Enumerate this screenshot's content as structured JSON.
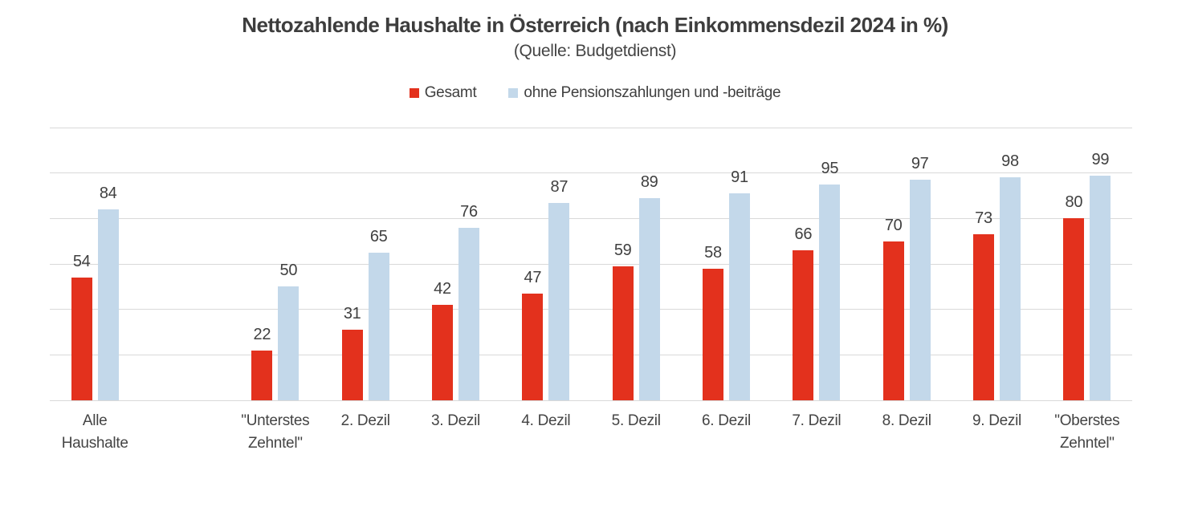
{
  "page": {
    "background": "#ffffff"
  },
  "header": {
    "title": "Nettozahlende Haushalte in Österreich (nach Einkommensdezil 2024 in %)",
    "subtitle": "(Quelle: Budgetdienst)"
  },
  "legend": {
    "items": [
      {
        "label": "Gesamt",
        "color": "#e3311d"
      },
      {
        "label": "ohne Pensionszahlungen und -beiträge",
        "color": "#c3d8ea"
      }
    ]
  },
  "chart_data": {
    "type": "bar",
    "title": "Nettozahlende Haushalte in Österreich (nach Einkommensdezil 2024 in %)",
    "subtitle": "(Quelle: Budgetdienst)",
    "categories": [
      "Alle Haushalte",
      "\"Unterstes Zehntel\"",
      "2. Dezil",
      "3. Dezil",
      "4. Dezil",
      "5. Dezil",
      "6. Dezil",
      "7. Dezil",
      "8. Dezil",
      "9. Dezil",
      "\"Oberstes Zehntel\""
    ],
    "category_label_lines": [
      [
        "Alle",
        "Haushalte"
      ],
      [
        "\"Unterstes",
        "Zehntel\""
      ],
      [
        "2. Dezil"
      ],
      [
        "3. Dezil"
      ],
      [
        "4. Dezil"
      ],
      [
        "5. Dezil"
      ],
      [
        "6. Dezil"
      ],
      [
        "7. Dezil"
      ],
      [
        "8. Dezil"
      ],
      [
        "9. Dezil"
      ],
      [
        "\"Oberstes",
        "Zehntel\""
      ]
    ],
    "series": [
      {
        "name": "Gesamt",
        "color": "#e3311d",
        "values": [
          54,
          22,
          31,
          42,
          47,
          59,
          58,
          66,
          70,
          73,
          80
        ]
      },
      {
        "name": "ohne Pensionszahlungen und -beiträge",
        "color": "#c3d8ea",
        "values": [
          84,
          50,
          65,
          76,
          87,
          89,
          91,
          95,
          97,
          98,
          99
        ]
      }
    ],
    "ylim": [
      0,
      120
    ],
    "grid": true,
    "gridline_step": 20,
    "gridline_color": "#d9d9d9",
    "y_tick_labels_visible": false,
    "data_labels": true,
    "data_label_color": "#404040",
    "legend_position": "top",
    "blank_slot_after_first_category": true
  }
}
